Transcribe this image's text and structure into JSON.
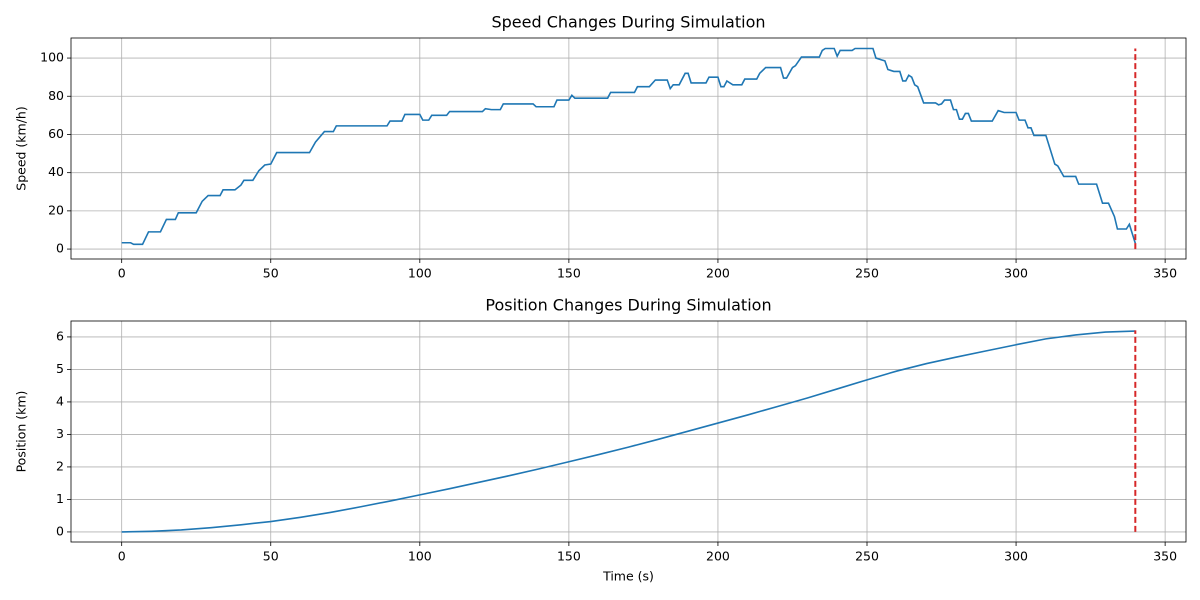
{
  "chart_data": [
    {
      "type": "line",
      "title": "Speed Changes During Simulation",
      "ylabel": "Speed (km/h)",
      "x": [
        0,
        3,
        4,
        7,
        9,
        13,
        15,
        18,
        19,
        25,
        27,
        29,
        33,
        34,
        38,
        40,
        41,
        44,
        46,
        48,
        50,
        52,
        63,
        65,
        68,
        71,
        72,
        89,
        90,
        94,
        95,
        100,
        101,
        103,
        104,
        109,
        110,
        121,
        122,
        124,
        127,
        128,
        138,
        139,
        145,
        146,
        150,
        151,
        152,
        163,
        164,
        172,
        173,
        177,
        179,
        183,
        184,
        185,
        187,
        189,
        190,
        191,
        196,
        197,
        200,
        201,
        202,
        203,
        205,
        208,
        209,
        213,
        214,
        216,
        221,
        222,
        223,
        225,
        226,
        228,
        234,
        235,
        236,
        239,
        240,
        241,
        245,
        246,
        252,
        253,
        255,
        256,
        257,
        259,
        261,
        262,
        263,
        264,
        265,
        266,
        267,
        269,
        273,
        274,
        275,
        276,
        278,
        279,
        280,
        281,
        282,
        283,
        284,
        285,
        292,
        294,
        296,
        300,
        301,
        303,
        304,
        305,
        306,
        310,
        313,
        314,
        316,
        320,
        321,
        327,
        329,
        331,
        333,
        334,
        337,
        338,
        340
      ],
      "series": [
        {
          "color": "#1f77b4",
          "values": [
            3.3,
            3.3,
            2.5,
            2.5,
            9,
            9,
            15.5,
            15.5,
            19,
            19,
            25,
            28,
            28,
            31,
            31,
            33.5,
            36,
            36,
            41,
            44,
            44.5,
            50.5,
            50.5,
            56,
            61.5,
            61.5,
            64.5,
            64.5,
            67,
            67,
            70.5,
            70.5,
            67.5,
            67.5,
            70,
            70,
            72,
            72,
            73.5,
            73,
            73,
            76,
            76,
            74.5,
            74.5,
            78,
            78,
            80.5,
            79,
            79,
            82,
            82,
            85,
            85,
            88.5,
            88.5,
            84,
            86,
            86,
            92,
            92,
            87,
            87,
            90,
            90,
            85,
            85,
            88,
            86,
            86,
            89,
            89,
            92,
            95,
            95,
            89.5,
            89.5,
            95,
            96,
            100.5,
            100.5,
            104,
            105,
            105,
            101,
            104,
            104,
            105,
            105,
            100,
            99,
            98.5,
            94,
            93,
            93,
            88,
            88,
            91,
            90,
            86,
            85,
            76.5,
            76.5,
            75.5,
            76,
            78,
            78,
            73,
            73,
            68,
            68,
            71,
            71,
            67,
            67,
            72.5,
            71.5,
            71.5,
            67.5,
            67.5,
            63.5,
            63.5,
            59.5,
            59.5,
            44.5,
            43.5,
            38,
            38,
            34,
            34,
            24,
            24,
            17,
            10.5,
            10.5,
            13,
            3
          ]
        }
      ],
      "vline": {
        "x": 340,
        "ymin": 0,
        "ymax": 105,
        "color": "#d62728"
      },
      "xlim": [
        -17,
        357
      ],
      "xticks": [
        0,
        50,
        100,
        150,
        200,
        250,
        300,
        350
      ],
      "ylim": [
        -5.2,
        110.5
      ],
      "yticks": [
        0,
        20,
        40,
        60,
        80,
        100
      ],
      "grid": true
    },
    {
      "type": "line",
      "title": "Position Changes During Simulation",
      "ylabel": "Position (km)",
      "xlabel": "Time (s)",
      "x": [
        0,
        10,
        20,
        30,
        40,
        50,
        60,
        70,
        80,
        90,
        100,
        110,
        120,
        130,
        140,
        150,
        160,
        170,
        180,
        190,
        200,
        210,
        220,
        230,
        240,
        250,
        260,
        270,
        280,
        290,
        300,
        310,
        320,
        330,
        340
      ],
      "series": [
        {
          "color": "#1f77b4",
          "values": [
            0,
            0.02,
            0.06,
            0.13,
            0.22,
            0.32,
            0.45,
            0.6,
            0.77,
            0.95,
            1.14,
            1.33,
            1.53,
            1.73,
            1.94,
            2.16,
            2.38,
            2.61,
            2.85,
            3.1,
            3.35,
            3.6,
            3.86,
            4.12,
            4.4,
            4.68,
            4.95,
            5.18,
            5.38,
            5.57,
            5.76,
            5.94,
            6.06,
            6.15,
            6.18
          ]
        }
      ],
      "vline": {
        "x": 340,
        "ymin": 0,
        "ymax": 6.2,
        "color": "#d62728"
      },
      "xlim": [
        -17,
        357
      ],
      "xticks": [
        0,
        50,
        100,
        150,
        200,
        250,
        300,
        350
      ],
      "ylim": [
        -0.31,
        6.49
      ],
      "yticks": [
        0,
        1,
        2,
        3,
        4,
        5,
        6
      ],
      "grid": true
    }
  ]
}
